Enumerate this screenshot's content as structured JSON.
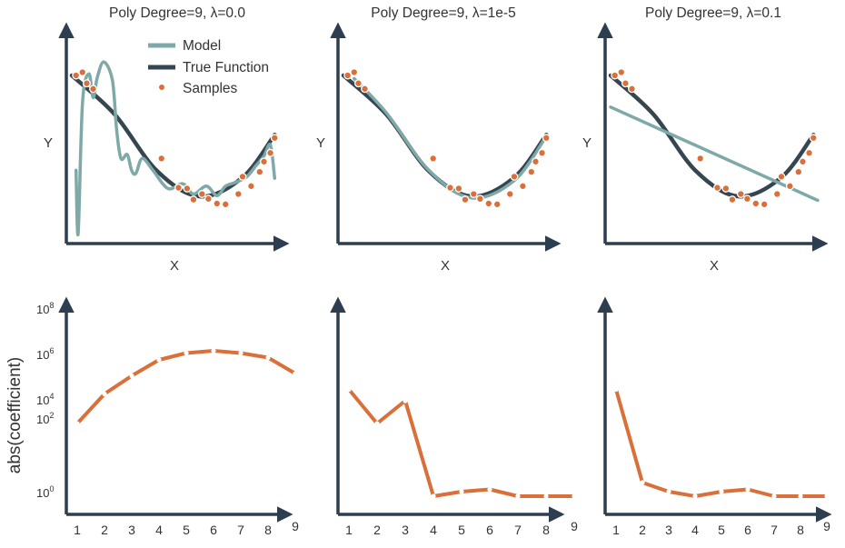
{
  "colors": {
    "axis": "#2c3e50",
    "model": "#7fa9a8",
    "true_function": "#364650",
    "samples": "#d9703a",
    "coefficients": "#d9703a"
  },
  "legend": {
    "model": "Model",
    "true_function": "True Function",
    "samples": "Samples"
  },
  "y_axis_common": {
    "label": "abs(coefficient)"
  },
  "chart_data": [
    {
      "type": "line",
      "panel": "fit",
      "title": "Poly Degree=9, λ=0.0",
      "xlabel": "X",
      "ylabel": "Y",
      "legend_position": "top-center",
      "xlim": [
        0,
        1
      ],
      "ylim": [
        -1.2,
        1.3
      ],
      "series": [
        {
          "name": "True Function",
          "kind": "line",
          "x": [
            0,
            0.2,
            0.4,
            0.6,
            0.8,
            0.95
          ],
          "y": [
            1.0,
            0.51,
            -0.21,
            -0.53,
            -0.29,
            0.25
          ]
        },
        {
          "name": "Model",
          "kind": "line",
          "x": [
            0.02,
            0.03,
            0.05,
            0.08,
            0.1,
            0.12,
            0.15,
            0.19,
            0.21,
            0.23,
            0.26,
            0.28,
            0.3,
            0.33,
            0.38,
            0.45,
            0.52,
            0.57,
            0.63,
            0.68,
            0.72,
            0.77,
            0.82,
            0.86,
            0.9,
            0.93,
            0.95
          ],
          "y": [
            -0.2,
            -1.0,
            0.65,
            1.02,
            0.72,
            0.98,
            1.17,
            0.94,
            0.32,
            -0.05,
            0.0,
            -0.2,
            -0.24,
            -0.05,
            -0.2,
            -0.43,
            -0.37,
            -0.5,
            -0.4,
            -0.52,
            -0.4,
            -0.35,
            -0.28,
            -0.15,
            -0.02,
            0.12,
            -0.3
          ]
        },
        {
          "name": "Samples",
          "kind": "scatter",
          "x": [
            0.02,
            0.05,
            0.07,
            0.1,
            0.42,
            0.5,
            0.54,
            0.57,
            0.61,
            0.64,
            0.68,
            0.72,
            0.78,
            0.8,
            0.84,
            0.88,
            0.9,
            0.93,
            0.95
          ],
          "y": [
            1.0,
            1.04,
            0.9,
            0.83,
            -0.05,
            -0.42,
            -0.43,
            -0.57,
            -0.5,
            -0.56,
            -0.62,
            -0.63,
            -0.5,
            -0.28,
            -0.4,
            -0.22,
            -0.09,
            0.02,
            0.21
          ]
        }
      ]
    },
    {
      "type": "line",
      "panel": "fit",
      "title": "Poly Degree=9, λ=1e-5",
      "xlabel": "X",
      "ylabel": "Y",
      "xlim": [
        0,
        1
      ],
      "ylim": [
        -1.2,
        1.3
      ],
      "series": [
        {
          "name": "True Function",
          "kind": "line",
          "x": [
            0,
            0.2,
            0.4,
            0.6,
            0.8,
            0.95
          ],
          "y": [
            1.0,
            0.51,
            -0.21,
            -0.53,
            -0.29,
            0.25
          ]
        },
        {
          "name": "Model",
          "kind": "line",
          "x": [
            0.05,
            0.2,
            0.4,
            0.6,
            0.8,
            0.95
          ],
          "y": [
            0.96,
            0.53,
            -0.2,
            -0.55,
            -0.33,
            0.23
          ]
        },
        {
          "name": "Samples",
          "kind": "scatter",
          "x": [
            0.02,
            0.05,
            0.07,
            0.1,
            0.42,
            0.5,
            0.54,
            0.57,
            0.61,
            0.64,
            0.68,
            0.72,
            0.78,
            0.8,
            0.84,
            0.88,
            0.9,
            0.93,
            0.95
          ],
          "y": [
            1.0,
            1.04,
            0.9,
            0.83,
            -0.05,
            -0.42,
            -0.43,
            -0.57,
            -0.5,
            -0.56,
            -0.62,
            -0.63,
            -0.5,
            -0.28,
            -0.4,
            -0.22,
            -0.09,
            0.02,
            0.21
          ]
        }
      ]
    },
    {
      "type": "line",
      "panel": "fit",
      "title": "Poly Degree=9, λ=0.1",
      "xlabel": "X",
      "ylabel": "Y",
      "xlim": [
        0,
        1
      ],
      "ylim": [
        -1.2,
        1.3
      ],
      "series": [
        {
          "name": "True Function",
          "kind": "line",
          "x": [
            0,
            0.2,
            0.4,
            0.6,
            0.8,
            0.95
          ],
          "y": [
            1.0,
            0.51,
            -0.21,
            -0.53,
            -0.29,
            0.25
          ]
        },
        {
          "name": "Model",
          "kind": "line",
          "x": [
            0.0,
            0.97
          ],
          "y": [
            0.6,
            -0.58
          ]
        },
        {
          "name": "Samples",
          "kind": "scatter",
          "x": [
            0.02,
            0.05,
            0.07,
            0.1,
            0.42,
            0.5,
            0.54,
            0.57,
            0.61,
            0.64,
            0.68,
            0.72,
            0.78,
            0.8,
            0.84,
            0.88,
            0.9,
            0.93,
            0.95
          ],
          "y": [
            1.0,
            1.04,
            0.9,
            0.83,
            -0.05,
            -0.42,
            -0.43,
            -0.57,
            -0.5,
            -0.56,
            -0.62,
            -0.63,
            -0.5,
            -0.28,
            -0.4,
            -0.22,
            -0.09,
            0.02,
            0.21
          ]
        }
      ]
    },
    {
      "type": "line",
      "panel": "coefficients",
      "ylabel": "abs(coefficient)",
      "yscale": "log",
      "ylim_exp": [
        -0.8,
        8
      ],
      "yticks": [
        "10^0",
        "10^2",
        "10^4",
        "10^6",
        "10^8"
      ],
      "categories": [
        "1",
        "2",
        "3",
        "4",
        "5",
        "6",
        "7",
        "8",
        "9"
      ],
      "values_log10": [
        3.0,
        4.3,
        5.1,
        5.8,
        6.1,
        6.2,
        6.1,
        5.9,
        5.2
      ]
    },
    {
      "type": "line",
      "panel": "coefficients",
      "yscale": "log",
      "ylim_exp": [
        -0.8,
        8
      ],
      "categories": [
        "1",
        "2",
        "3",
        "4",
        "5",
        "6",
        "7",
        "8",
        "9"
      ],
      "values_log10": [
        4.5,
        3.0,
        4.0,
        -0.2,
        0.0,
        0.1,
        -0.2,
        -0.2,
        -0.2
      ]
    },
    {
      "type": "line",
      "panel": "coefficients",
      "yscale": "log",
      "ylim_exp": [
        -0.8,
        8
      ],
      "categories": [
        "1",
        "2",
        "3",
        "4",
        "5",
        "6",
        "7",
        "8",
        "9"
      ],
      "values_log10": [
        4.5,
        0.4,
        0.0,
        -0.2,
        0.0,
        0.1,
        -0.2,
        -0.2,
        -0.2
      ]
    }
  ]
}
